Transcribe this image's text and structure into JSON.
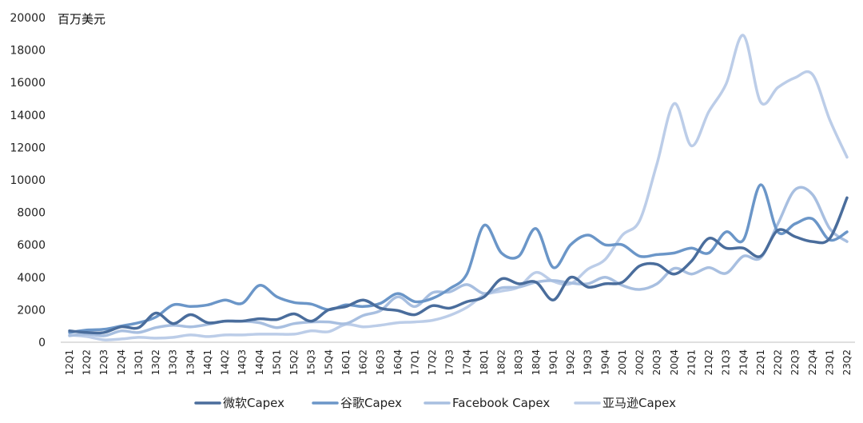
{
  "chart_data": {
    "type": "line",
    "unit_label": "百万美元",
    "ylim": [
      0,
      20000
    ],
    "y_ticks": [
      0,
      2000,
      4000,
      6000,
      8000,
      10000,
      12000,
      14000,
      16000,
      18000,
      20000
    ],
    "categories": [
      "12Q1",
      "12Q2",
      "12Q3",
      "12Q4",
      "13Q1",
      "13Q2",
      "13Q3",
      "13Q4",
      "14Q1",
      "14Q2",
      "14Q3",
      "14Q4",
      "15Q1",
      "15Q2",
      "15Q3",
      "15Q4",
      "16Q1",
      "16Q2",
      "16Q3",
      "16Q4",
      "17Q1",
      "17Q2",
      "17Q3",
      "17Q4",
      "18Q1",
      "18Q2",
      "18Q3",
      "18Q4",
      "19Q1",
      "19Q2",
      "19Q3",
      "19Q4",
      "20Q1",
      "20Q2",
      "20Q3",
      "20Q4",
      "21Q1",
      "21Q2",
      "21Q3",
      "21Q4",
      "22Q1",
      "22Q2",
      "22Q3",
      "22Q4",
      "23Q1",
      "23Q2"
    ],
    "grid": false,
    "legend_position": "bottom",
    "series": [
      {
        "name": "微软Capex",
        "color": "#4a6d9c",
        "values": [
          700,
          600,
          600,
          950,
          900,
          1800,
          1150,
          1700,
          1200,
          1300,
          1300,
          1450,
          1400,
          1750,
          1300,
          2000,
          2200,
          2600,
          2100,
          1950,
          1700,
          2250,
          2100,
          2500,
          2800,
          3900,
          3600,
          3700,
          2600,
          4000,
          3400,
          3600,
          3700,
          4700,
          4800,
          4200,
          5000,
          6400,
          5800,
          5800,
          5300,
          6900,
          6500,
          6200,
          6400,
          8900
        ]
      },
      {
        "name": "谷歌Capex",
        "color": "#6b96c8",
        "values": [
          600,
          750,
          800,
          1000,
          1200,
          1550,
          2300,
          2200,
          2300,
          2600,
          2400,
          3500,
          2800,
          2450,
          2350,
          2000,
          2300,
          2200,
          2400,
          3000,
          2500,
          2700,
          3300,
          4200,
          7200,
          5500,
          5300,
          7000,
          4600,
          6000,
          6600,
          6000,
          6000,
          5300,
          5400,
          5500,
          5800,
          5500,
          6800,
          6300,
          9700,
          6800,
          7300,
          7600,
          6300,
          6800
        ]
      },
      {
        "name": "Facebook Capex",
        "color": "#a8bfe0",
        "values": [
          400,
          500,
          400,
          700,
          600,
          900,
          1050,
          950,
          1100,
          1300,
          1300,
          1200,
          900,
          1150,
          1250,
          1250,
          1150,
          1650,
          1950,
          2800,
          2200,
          3050,
          3100,
          3550,
          3000,
          3350,
          3400,
          3700,
          3800,
          3650,
          3600,
          4000,
          3500,
          3250,
          3600,
          4550,
          4200,
          4600,
          4250,
          5300,
          5200,
          7300,
          9400,
          9100,
          7000,
          6200
        ]
      },
      {
        "name": "亚马逊Capex",
        "color": "#bccde8",
        "values": [
          450,
          350,
          150,
          200,
          300,
          250,
          300,
          450,
          350,
          450,
          450,
          500,
          500,
          500,
          700,
          650,
          1100,
          950,
          1050,
          1200,
          1250,
          1350,
          1650,
          2150,
          2900,
          3150,
          3400,
          4300,
          3750,
          3600,
          4500,
          5100,
          6600,
          7500,
          11000,
          14700,
          12100,
          14200,
          15900,
          18900,
          14800,
          15700,
          16300,
          16500,
          13700,
          11400
        ]
      }
    ]
  }
}
